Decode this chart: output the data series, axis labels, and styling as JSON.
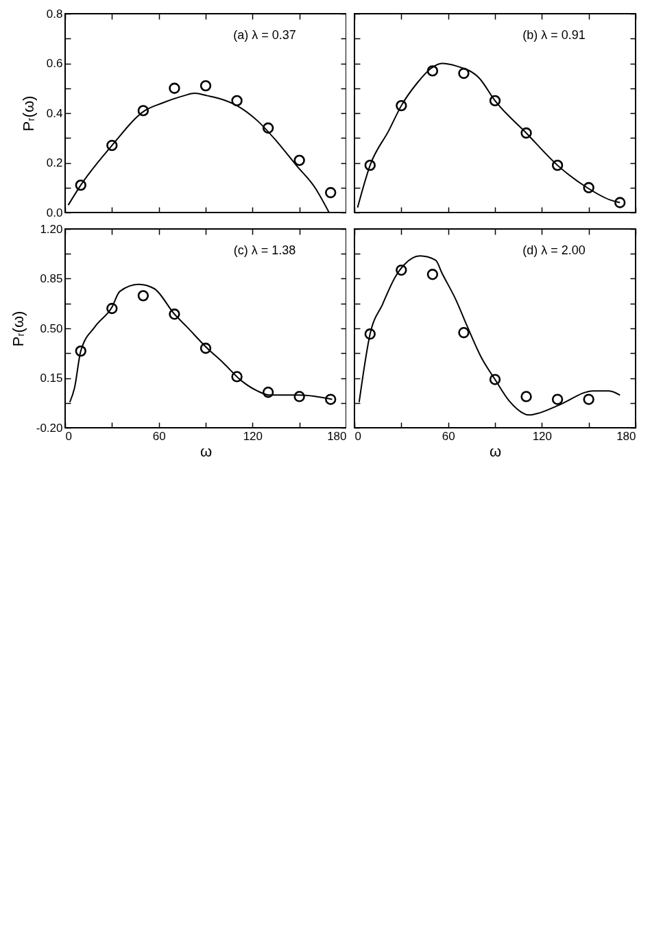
{
  "chart_data": [
    {
      "type": "scatter",
      "ylabel": "Pᵣ(ω)",
      "xlim": [
        0,
        180
      ],
      "ylim": [
        0,
        0.8
      ],
      "tick_labels": "y",
      "xticks": [
        {
          "value": 0,
          "label": null
        },
        {
          "value": 30,
          "label": null
        },
        {
          "value": 60,
          "label": null
        },
        {
          "value": 90,
          "label": null
        },
        {
          "value": 120,
          "label": null
        },
        {
          "value": 150,
          "label": null
        },
        {
          "value": 180,
          "label": null
        }
      ],
      "yticks": [
        {
          "value": 0,
          "label": "0.0"
        },
        {
          "value": 0.1,
          "label": null
        },
        0.2,
        {
          "value": 0.3,
          "label": null
        },
        0.4,
        {
          "value": 0.5,
          "label": null
        },
        0.6,
        {
          "value": 0.7,
          "label": null
        },
        0.8
      ],
      "annotations": [
        "(a) λ = 0.37"
      ],
      "series": [
        {
          "marker": "circle",
          "color": "#000000",
          "x": [
            10,
            30,
            50,
            70,
            90,
            110,
            130,
            150,
            170
          ],
          "values": [
            0.11,
            0.27,
            0.41,
            0.5,
            0.51,
            0.45,
            0.34,
            0.21,
            0.08
          ]
        },
        {
          "type": "line",
          "color": "#000000",
          "x": [
            2,
            10,
            30,
            51,
            62,
            76,
            83,
            91,
            98,
            110,
            123,
            135,
            148,
            160,
            169
          ],
          "values": [
            0.03,
            0.11,
            0.27,
            0.41,
            0.44,
            0.47,
            0.48,
            0.47,
            0.46,
            0.43,
            0.37,
            0.29,
            0.19,
            0.1,
            0.0
          ]
        }
      ]
    },
    {
      "type": "scatter",
      "xlim": [
        0,
        180
      ],
      "ylim": [
        0,
        0.8
      ],
      "tick_labels": false,
      "xticks": [
        {
          "value": 0,
          "label": null
        },
        {
          "value": 30,
          "label": null
        },
        {
          "value": 60,
          "label": null
        },
        {
          "value": 90,
          "label": null
        },
        {
          "value": 120,
          "label": null
        },
        {
          "value": 150,
          "label": null
        },
        {
          "value": 180,
          "label": null
        }
      ],
      "yticks": [
        {
          "value": 0,
          "label": null
        },
        {
          "value": 0.1,
          "label": null
        },
        {
          "value": 0.2,
          "label": null
        },
        {
          "value": 0.3,
          "label": null
        },
        {
          "value": 0.4,
          "label": null
        },
        {
          "value": 0.5,
          "label": null
        },
        {
          "value": 0.6,
          "label": null
        },
        {
          "value": 0.7,
          "label": null
        },
        {
          "value": 0.8,
          "label": null
        }
      ],
      "annotations": [
        "(b) λ = 0.91"
      ],
      "series": [
        {
          "marker": "circle",
          "color": "#000000",
          "x": [
            10,
            30,
            50,
            70,
            90,
            110,
            130,
            150,
            170
          ],
          "values": [
            0.19,
            0.43,
            0.57,
            0.56,
            0.45,
            0.32,
            0.19,
            0.1,
            0.04
          ]
        },
        {
          "type": "line",
          "color": "#000000",
          "x": [
            2,
            10,
            22,
            30,
            40,
            49,
            56,
            65,
            80,
            90,
            110,
            130,
            149,
            164,
            170
          ],
          "values": [
            0.02,
            0.19,
            0.33,
            0.43,
            0.52,
            0.58,
            0.6,
            0.59,
            0.54,
            0.45,
            0.32,
            0.19,
            0.1,
            0.05,
            0.04
          ]
        }
      ]
    },
    {
      "type": "scatter",
      "xlabel": "ω",
      "ylabel": "Pᵣ(ω)",
      "xlim": [
        0,
        180
      ],
      "ylim": [
        -0.2,
        1.2
      ],
      "xticks": [
        0,
        {
          "value": 30,
          "label": null
        },
        60,
        {
          "value": 90,
          "label": null
        },
        120,
        {
          "value": 150,
          "label": null
        },
        180
      ],
      "yticks": [
        {
          "value": -0.2,
          "label": "-0.20"
        },
        {
          "value": -0.025,
          "label": null
        },
        0.15,
        {
          "value": 0.325,
          "label": null
        },
        {
          "value": 0.5,
          "label": "0.50"
        },
        {
          "value": 0.675,
          "label": null
        },
        0.85,
        {
          "value": 1.025,
          "label": null
        },
        {
          "value": 1.2,
          "label": "1.20"
        }
      ],
      "annotations": [
        "(c) λ = 1.38"
      ],
      "series": [
        {
          "marker": "circle",
          "color": "#000000",
          "x": [
            10,
            30,
            50,
            70,
            90,
            110,
            130,
            150,
            170
          ],
          "values": [
            0.34,
            0.64,
            0.73,
            0.6,
            0.36,
            0.16,
            0.05,
            0.02,
            0.0
          ]
        },
        {
          "type": "line",
          "color": "#000000",
          "x": [
            3,
            6,
            10,
            19,
            30,
            35,
            47,
            57,
            70,
            78,
            91,
            101,
            113,
            123,
            131,
            150,
            171
          ],
          "values": [
            -0.02,
            0.08,
            0.34,
            0.51,
            0.65,
            0.76,
            0.81,
            0.78,
            0.6,
            0.51,
            0.36,
            0.26,
            0.13,
            0.06,
            0.03,
            0.03,
            0.0
          ]
        }
      ]
    },
    {
      "type": "scatter",
      "xlabel": "ω",
      "xlim": [
        0,
        180
      ],
      "ylim": [
        -0.2,
        1.2
      ],
      "tick_labels": "x",
      "xticks": [
        0,
        {
          "value": 30,
          "label": null
        },
        60,
        {
          "value": 90,
          "label": null
        },
        120,
        {
          "value": 150,
          "label": null
        },
        180
      ],
      "yticks": [
        {
          "value": -0.2,
          "label": null
        },
        {
          "value": -0.025,
          "label": null
        },
        {
          "value": 0.15,
          "label": null
        },
        {
          "value": 0.325,
          "label": null
        },
        {
          "value": 0.5,
          "label": null
        },
        {
          "value": 0.675,
          "label": null
        },
        {
          "value": 0.85,
          "label": null
        },
        {
          "value": 1.025,
          "label": null
        },
        {
          "value": 1.2,
          "label": null
        }
      ],
      "annotations": [
        "(d) λ = 2.00"
      ],
      "series": [
        {
          "marker": "circle",
          "color": "#000000",
          "x": [
            10,
            30,
            50,
            70,
            90,
            110,
            130,
            150
          ],
          "values": [
            0.46,
            0.91,
            0.88,
            0.47,
            0.14,
            0.02,
            0.0,
            0.0
          ]
        },
        {
          "type": "line",
          "color": "#000000",
          "x": [
            3,
            10,
            18,
            26,
            32,
            42,
            52,
            56,
            65,
            72,
            81,
            90,
            99,
            112,
            117,
            131,
            153,
            163,
            170
          ],
          "values": [
            -0.02,
            0.46,
            0.67,
            0.86,
            0.95,
            1.01,
            0.98,
            0.89,
            0.7,
            0.52,
            0.3,
            0.14,
            -0.01,
            -0.11,
            -0.1,
            -0.04,
            0.06,
            0.06,
            0.03
          ]
        }
      ]
    }
  ]
}
